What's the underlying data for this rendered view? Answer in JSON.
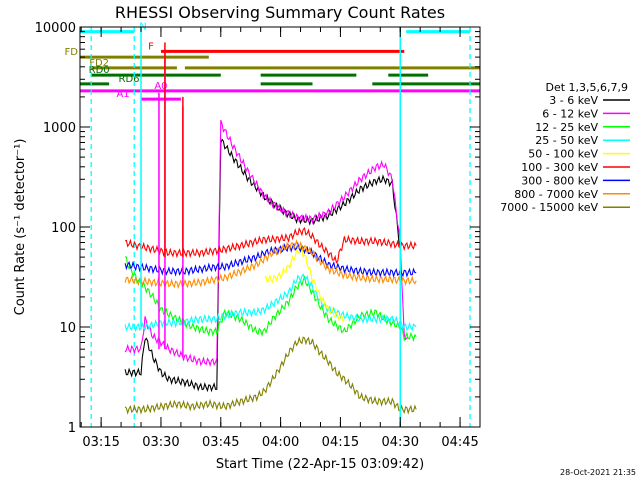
{
  "chart_data": {
    "type": "line",
    "title": "RHESSI Observing Summary Count Rates",
    "xlabel": "Start Time (22-Apr-15 03:09:42)",
    "ylabel": "Count Rate (s⁻¹ detector⁻¹)",
    "x_ticks": [
      "03:15",
      "03:30",
      "03:45",
      "04:00",
      "04:15",
      "04:30",
      "04:45"
    ],
    "x_tick_minutes": [
      15,
      30,
      45,
      60,
      75,
      90,
      105
    ],
    "xlim_minutes": [
      9.7,
      110
    ],
    "y_scale": "log",
    "ylim": [
      1,
      10000
    ],
    "y_ticks": [
      "1",
      "10",
      "100",
      "1000",
      "10000"
    ],
    "legend_title": "Det 1,3,5,6,7,9",
    "legend_position": "right",
    "timestamp": "28-Oct-2021 21:35",
    "series": [
      {
        "name": "3 - 6 keV",
        "color": "#000000",
        "x": [
          21,
          25,
          26,
          28,
          30,
          32,
          36,
          40,
          44,
          45,
          48,
          52,
          56,
          60,
          64,
          68,
          72,
          76,
          80,
          84,
          86,
          88,
          90
        ],
        "y": [
          3.5,
          3.5,
          8,
          5,
          3.5,
          3,
          2.8,
          2.5,
          2.5,
          750,
          500,
          300,
          200,
          150,
          120,
          115,
          130,
          170,
          240,
          290,
          300,
          270,
          60
        ]
      },
      {
        "name": "6 - 12 keV",
        "color": "#ff00ff",
        "x": [
          21,
          25,
          26,
          28,
          30,
          32,
          36,
          40,
          44,
          45,
          48,
          52,
          56,
          60,
          64,
          68,
          72,
          76,
          80,
          84,
          86,
          88,
          90,
          91,
          92
        ],
        "y": [
          6,
          6,
          12,
          8,
          7,
          6,
          5,
          4.5,
          4.5,
          1100,
          650,
          350,
          200,
          150,
          125,
          120,
          140,
          200,
          300,
          400,
          420,
          300,
          70,
          8,
          8
        ]
      },
      {
        "name": "12 - 25 keV",
        "color": "#00ff00",
        "x": [
          21,
          22,
          24,
          26,
          28,
          30,
          34,
          38,
          42,
          44,
          46,
          50,
          54,
          56,
          58,
          62,
          64,
          66,
          68,
          70,
          72,
          76,
          80,
          84,
          86,
          88,
          90,
          91,
          94
        ],
        "y": [
          50,
          40,
          30,
          25,
          20,
          15,
          12,
          10,
          9,
          9,
          14,
          12,
          9,
          9,
          12,
          18,
          25,
          30,
          22,
          16,
          12,
          9,
          13,
          14,
          12,
          11,
          10,
          8,
          8
        ]
      },
      {
        "name": "25 - 50 keV",
        "color": "#00ffff",
        "x": [
          21,
          26,
          30,
          34,
          40,
          44,
          46,
          50,
          54,
          56,
          58,
          62,
          64,
          66,
          68,
          70,
          72,
          76,
          80,
          84,
          86,
          88,
          90,
          91,
          94
        ],
        "y": [
          10,
          10,
          11,
          11,
          12,
          12,
          13,
          14,
          14,
          15,
          17,
          22,
          30,
          32,
          25,
          18,
          15,
          13,
          12,
          12,
          12,
          12,
          11,
          10,
          10
        ]
      },
      {
        "name": "50 - 100 keV",
        "color": "#ffff00",
        "x": [
          56,
          58,
          60,
          62,
          64,
          65,
          66,
          67,
          68,
          70,
          72,
          74,
          76
        ],
        "y": [
          30,
          30,
          33,
          40,
          55,
          60,
          52,
          40,
          30,
          20,
          15,
          13,
          12
        ]
      },
      {
        "name": "100 - 300 keV",
        "color": "#ff0000",
        "x": [
          21,
          24,
          28,
          32,
          36,
          40,
          44,
          46,
          50,
          54,
          56,
          58,
          62,
          64,
          66,
          68,
          70,
          72,
          74,
          76,
          80,
          84,
          86,
          88,
          90,
          91,
          94
        ],
        "y": [
          70,
          65,
          60,
          55,
          55,
          55,
          58,
          60,
          65,
          72,
          75,
          75,
          78,
          88,
          92,
          80,
          65,
          55,
          45,
          75,
          72,
          72,
          70,
          68,
          65,
          65,
          65
        ]
      },
      {
        "name": "300 - 800 keV",
        "color": "#0000ff",
        "x": [
          21,
          24,
          28,
          32,
          36,
          40,
          44,
          46,
          50,
          54,
          56,
          58,
          62,
          64,
          66,
          68,
          70,
          72,
          76,
          80,
          84,
          88,
          90,
          94
        ],
        "y": [
          42,
          40,
          38,
          36,
          36,
          38,
          40,
          40,
          45,
          50,
          55,
          58,
          62,
          63,
          60,
          55,
          48,
          42,
          38,
          36,
          35,
          35,
          35,
          35
        ]
      },
      {
        "name": "800 - 7000 keV",
        "color": "#ff8c00",
        "x": [
          21,
          24,
          28,
          32,
          36,
          40,
          44,
          46,
          50,
          54,
          56,
          58,
          62,
          64,
          66,
          68,
          70,
          72,
          76,
          80,
          84,
          88,
          90,
          94
        ],
        "y": [
          30,
          29,
          28,
          27,
          27,
          28,
          30,
          31,
          36,
          42,
          48,
          55,
          65,
          67,
          62,
          55,
          45,
          38,
          33,
          31,
          30,
          30,
          29,
          29
        ]
      },
      {
        "name": "7000 - 15000 keV",
        "color": "#808000",
        "x": [
          21,
          26,
          30,
          34,
          38,
          42,
          46,
          50,
          54,
          56,
          58,
          60,
          62,
          64,
          66,
          68,
          70,
          72,
          74,
          76,
          78,
          80,
          84,
          88,
          90,
          94
        ],
        "y": [
          1.5,
          1.5,
          1.6,
          1.7,
          1.6,
          1.7,
          1.6,
          1.8,
          2.0,
          2.3,
          3.0,
          4.0,
          5.5,
          7.0,
          7.5,
          7.0,
          5.5,
          4.5,
          3.5,
          3.0,
          2.5,
          2.0,
          1.8,
          1.8,
          1.5,
          1.5
        ]
      }
    ],
    "spikes": [
      {
        "x": 29.5,
        "y_base": 6,
        "y_top": 2200,
        "color": "#ff00ff"
      },
      {
        "x": 31,
        "y_base": 6,
        "y_top": 6000,
        "color": "#ff00ff"
      },
      {
        "x": 35.5,
        "y_base": 5,
        "y_top": 1600,
        "color": "#ff00ff"
      },
      {
        "x": 31,
        "y_base": 50,
        "y_top": 7000,
        "color": "#ff0000"
      },
      {
        "x": 35.5,
        "y_base": 50,
        "y_top": 2000,
        "color": "#ff0000"
      },
      {
        "x": 25,
        "y_base": 10,
        "y_top": 10000,
        "color": "#00ffff"
      },
      {
        "x": 90,
        "y_base": 1,
        "y_top": 10000,
        "color": "#00ffff"
      }
    ],
    "verticals": [
      {
        "x": 12.5,
        "color": "#00ffff",
        "style": "dashed"
      },
      {
        "x": 23.3,
        "color": "#00ffff",
        "style": "dashed"
      },
      {
        "x": 107.5,
        "color": "#00ffff",
        "style": "dashed"
      }
    ],
    "flag_bars": [
      {
        "label": "N",
        "color": "#00ffff",
        "y": 9000,
        "label_x": 25.5,
        "segments": [
          [
            9.7,
            23.3
          ],
          [
            91.5,
            107.5
          ]
        ]
      },
      {
        "label": "F",
        "color": "#ff0000",
        "y": 5700,
        "label_x": 27.5,
        "segments": [
          [
            30,
            91
          ]
        ]
      },
      {
        "label": "FD",
        "color": "#808000",
        "y": 5000,
        "label_x": 7.5,
        "segments": [
          [
            9.7,
            42
          ]
        ]
      },
      {
        "label": "FD2",
        "color": "#808000",
        "y": 3900,
        "label_x": 14.5,
        "segments": [
          [
            12.5,
            34
          ],
          [
            36,
            110
          ]
        ]
      },
      {
        "label": "RD0",
        "color": "#007000",
        "y": 3300,
        "label_x": 14.5,
        "segments": [
          [
            12.5,
            45
          ],
          [
            55,
            79
          ],
          [
            87,
            97
          ]
        ]
      },
      {
        "label": "RD6",
        "color": "#007000",
        "y": 2700,
        "label_x": 22,
        "segments": [
          [
            9.7,
            17
          ],
          [
            55,
            68
          ],
          [
            83,
            110
          ]
        ]
      },
      {
        "label": "A0",
        "color": "#ff00ff",
        "y": 2300,
        "label_x": 30,
        "segments": [
          [
            9.7,
            110
          ]
        ]
      },
      {
        "label": "A1",
        "color": "#ff00ff",
        "y": 1900,
        "label_x": 20.5,
        "segments": [
          [
            25,
            35
          ]
        ]
      }
    ]
  }
}
